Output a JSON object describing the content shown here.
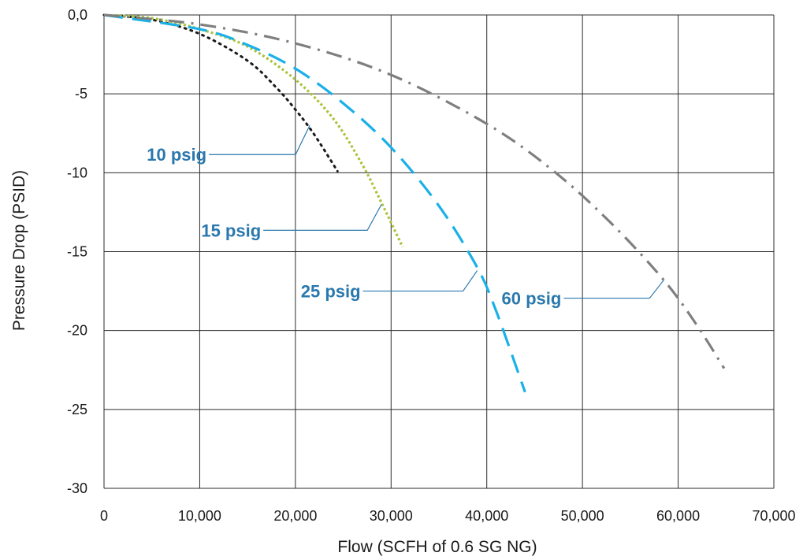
{
  "chart_data": {
    "type": "line",
    "title": "",
    "xlabel": "Flow (SCFH of 0.6 SG NG)",
    "ylabel": "Pressure Drop (PSID)",
    "xlim": [
      0,
      70000
    ],
    "ylim": [
      -30,
      0
    ],
    "grid": true,
    "x_ticks": [
      0,
      10000,
      20000,
      30000,
      40000,
      50000,
      60000,
      70000
    ],
    "x_tick_labels": [
      "0",
      "10,000",
      "20,000",
      "30,000",
      "40,000",
      "50,000",
      "60,000",
      "70,000"
    ],
    "y_ticks": [
      0,
      -5,
      -10,
      -15,
      -20,
      -25,
      -30
    ],
    "y_tick_labels": [
      "0,0",
      "-5",
      "-10",
      "-15",
      "-20",
      "-25",
      "-30"
    ],
    "series": [
      {
        "name": "10 psig",
        "color": "#1a1a1a",
        "label_color": "#2a78ad",
        "dash": "dotted",
        "points": [
          [
            0,
            0
          ],
          [
            5000,
            -0.3
          ],
          [
            10000,
            -1.2
          ],
          [
            15000,
            -2.9
          ],
          [
            18000,
            -4.6
          ],
          [
            20000,
            -6.0
          ],
          [
            22000,
            -7.6
          ],
          [
            24400,
            -9.9
          ]
        ],
        "label_at": [
          21500,
          -7.0
        ]
      },
      {
        "name": "15 psig",
        "color": "#a8c43b",
        "label_color": "#2a78ad",
        "dash": "short-dash",
        "points": [
          [
            0,
            0
          ],
          [
            5000,
            -0.2
          ],
          [
            10000,
            -0.9
          ],
          [
            15000,
            -2.0
          ],
          [
            20000,
            -4.1
          ],
          [
            24000,
            -6.6
          ],
          [
            27000,
            -9.5
          ],
          [
            29000,
            -11.9
          ],
          [
            31200,
            -14.7
          ]
        ],
        "label_at": [
          29000,
          -12.0
        ]
      },
      {
        "name": "25 psig",
        "color": "#1ab0e8",
        "label_color": "#2a78ad",
        "dash": "long-dash",
        "points": [
          [
            0,
            0
          ],
          [
            10000,
            -0.9
          ],
          [
            15000,
            -1.9
          ],
          [
            20000,
            -3.4
          ],
          [
            25000,
            -5.6
          ],
          [
            30000,
            -8.4
          ],
          [
            35000,
            -12.1
          ],
          [
            39000,
            -16.0
          ],
          [
            41000,
            -18.8
          ],
          [
            44000,
            -23.9
          ]
        ],
        "label_at": [
          39000,
          -16.2
        ]
      },
      {
        "name": "60 psig",
        "color": "#7f7f7f",
        "label_color": "#2a78ad",
        "dash": "dash-dot",
        "points": [
          [
            0,
            0
          ],
          [
            10000,
            -0.6
          ],
          [
            20000,
            -1.8
          ],
          [
            30000,
            -3.8
          ],
          [
            40000,
            -6.9
          ],
          [
            47000,
            -9.9
          ],
          [
            53000,
            -13.2
          ],
          [
            58500,
            -16.8
          ],
          [
            62000,
            -19.7
          ],
          [
            64800,
            -22.4
          ]
        ],
        "label_at": [
          58500,
          -16.8
        ]
      }
    ]
  }
}
